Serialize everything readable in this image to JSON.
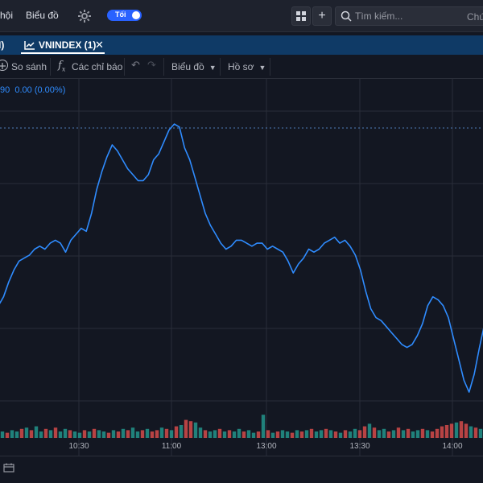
{
  "topbar": {
    "nav_partial": "hội",
    "nav_chart": "Biểu đồ",
    "theme_toggle_label": "Tối",
    "search_placeholder": "Tìm kiếm...",
    "right_cut_text": "Chứ"
  },
  "tabs": {
    "prev_tab_partial": "I)",
    "active_tab": "VNINDEX (1)"
  },
  "toolbar": {
    "compare": "So sánh",
    "indicators": "Các chỉ báo",
    "chart_type": "Biểu đồ",
    "profile": "Hồ sơ"
  },
  "legend": {
    "value_partial": "90",
    "change": "0.00 (0.00%)"
  },
  "colors": {
    "line": "#2f8cff",
    "volume_up": "#26a69a",
    "volume_down": "#ef5350",
    "background": "#131722",
    "tab_background": "#0f3a66"
  },
  "chart_data": {
    "type": "line",
    "x_ticks": [
      "10:30",
      "11:00",
      "13:00",
      "13:30",
      "14:00"
    ],
    "grid": true,
    "series": [
      {
        "values": [
          0.36,
          0.39,
          0.44,
          0.48,
          0.51,
          0.52,
          0.53,
          0.55,
          0.56,
          0.55,
          0.57,
          0.58,
          0.57,
          0.54,
          0.58,
          0.6,
          0.62,
          0.61,
          0.67,
          0.75,
          0.81,
          0.86,
          0.9,
          0.88,
          0.85,
          0.82,
          0.8,
          0.78,
          0.78,
          0.8,
          0.85,
          0.87,
          0.91,
          0.95,
          0.97,
          0.96,
          0.89,
          0.85,
          0.79,
          0.73,
          0.67,
          0.63,
          0.6,
          0.57,
          0.55,
          0.56,
          0.58,
          0.58,
          0.57,
          0.56,
          0.57,
          0.57,
          0.55,
          0.56,
          0.55,
          0.54,
          0.51,
          0.47,
          0.5,
          0.52,
          0.55,
          0.54,
          0.55,
          0.57,
          0.58,
          0.59,
          0.57,
          0.58,
          0.56,
          0.53,
          0.48,
          0.41,
          0.35,
          0.32,
          0.31,
          0.29,
          0.27,
          0.25,
          0.23,
          0.22,
          0.23,
          0.26,
          0.3,
          0.36,
          0.39,
          0.38,
          0.36,
          0.32,
          0.25,
          0.18,
          0.11,
          0.07,
          0.13,
          0.22,
          0.3
        ]
      }
    ],
    "volume": [
      5,
      4,
      6,
      5,
      7,
      8,
      6,
      9,
      5,
      7,
      6,
      8,
      5,
      7,
      6,
      5,
      4,
      6,
      5,
      7,
      6,
      5,
      4,
      6,
      5,
      7,
      6,
      8,
      5,
      6,
      7,
      5,
      6,
      8,
      7,
      6,
      9,
      10,
      14,
      13,
      12,
      8,
      6,
      5,
      6,
      7,
      5,
      6,
      5,
      7,
      5,
      6,
      4,
      5,
      18,
      6,
      4,
      5,
      6,
      5,
      4,
      6,
      5,
      6,
      7,
      5,
      6,
      7,
      6,
      5,
      4,
      6,
      5,
      7,
      6,
      9,
      11,
      8,
      6,
      7,
      5,
      6,
      8,
      6,
      7,
      5,
      6,
      7,
      6,
      5,
      7,
      9,
      10,
      11,
      12,
      13,
      11,
      9,
      8,
      7
    ],
    "volume_up": [
      true,
      false,
      true,
      true,
      false,
      true,
      false,
      true,
      true,
      false,
      true,
      false,
      true,
      true,
      false,
      true,
      true,
      false,
      true,
      false,
      true,
      true,
      false,
      true,
      false,
      true,
      false,
      true,
      true,
      false,
      true,
      false,
      false,
      true,
      false,
      true,
      false,
      true,
      false,
      false,
      true,
      true,
      false,
      true,
      true,
      false,
      true,
      false,
      true,
      true,
      false,
      true,
      true,
      false,
      true,
      false,
      true,
      false,
      true,
      true,
      false,
      true,
      false,
      true,
      false,
      true,
      true,
      false,
      true,
      false,
      true,
      false,
      true,
      true,
      false,
      false,
      true,
      false,
      true,
      true,
      false,
      true,
      false,
      true,
      false,
      true,
      true,
      false,
      true,
      false,
      false,
      false,
      false,
      false,
      true,
      false,
      false,
      true,
      false,
      true
    ]
  }
}
